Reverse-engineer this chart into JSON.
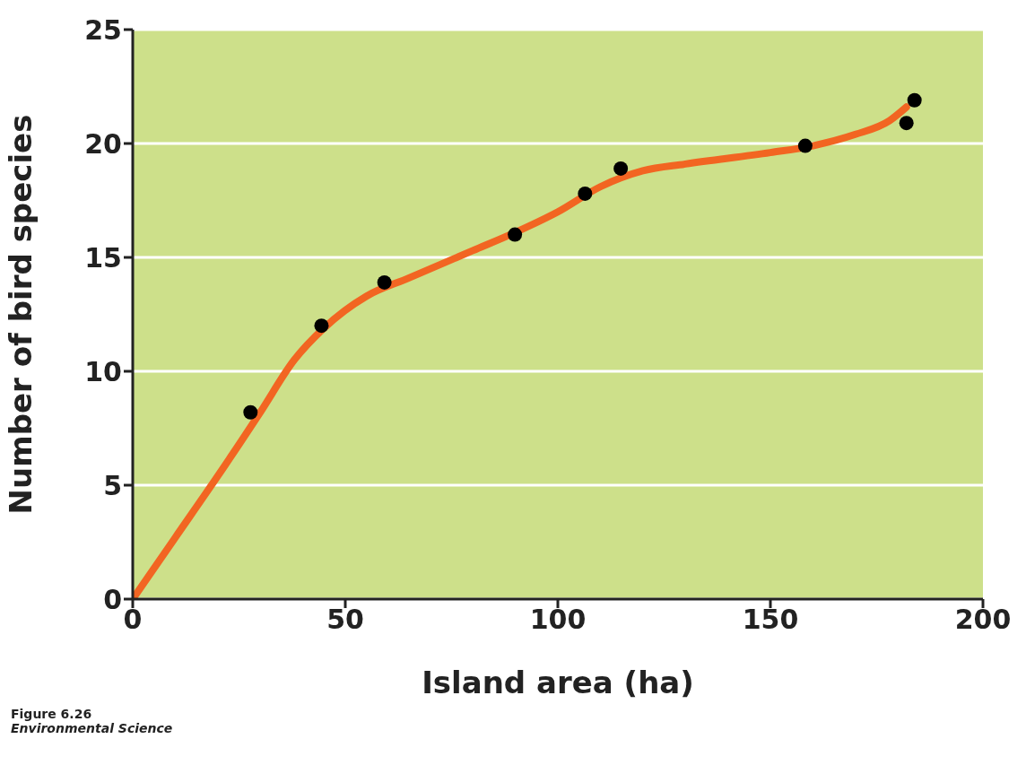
{
  "chart_data": {
    "type": "scatter",
    "xlabel": "Island area (ha)",
    "ylabel": "Number of bird species",
    "series": [
      {
        "type": "scatter",
        "color": "#000000",
        "x": [
          27.7,
          44.4,
          59.2,
          89.9,
          106.4,
          114.8,
          158.2,
          182,
          183.9
        ],
        "values": [
          8.2,
          12,
          13.9,
          16,
          17.8,
          18.9,
          19.9,
          20.9,
          21.9
        ]
      },
      {
        "type": "line",
        "color": "#f26522",
        "x": [
          0,
          10,
          20,
          30,
          38,
          45,
          55,
          65,
          80,
          90,
          100,
          110,
          120,
          130,
          150,
          160,
          170,
          178,
          182
        ],
        "values": [
          0,
          2.7,
          5.4,
          8.2,
          10.5,
          11.9,
          13.3,
          14.1,
          15.3,
          16.1,
          17,
          18.1,
          18.8,
          19.1,
          19.6,
          19.9,
          20.4,
          21,
          21.6
        ]
      }
    ],
    "xlim": [
      0,
      200
    ],
    "xticks": [
      0,
      50,
      100,
      150,
      200
    ],
    "ylim": [
      0,
      25
    ],
    "yticks": [
      0,
      5,
      10,
      15,
      20,
      25
    ],
    "grid": "y",
    "annotations": [
      "Figure 6.26",
      "Environmental Science"
    ]
  }
}
